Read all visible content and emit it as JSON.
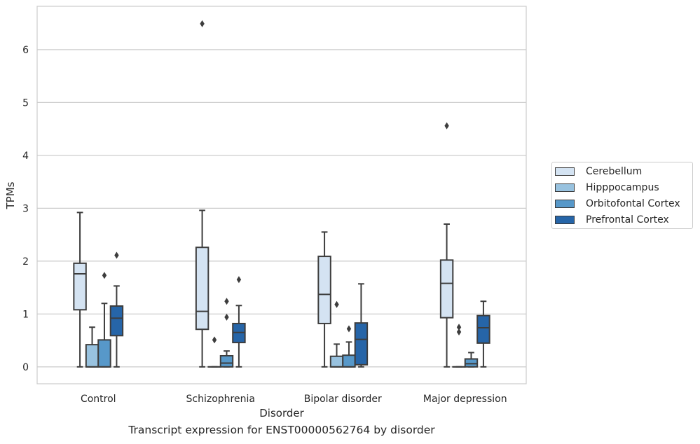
{
  "chart_data": {
    "type": "box",
    "xlabel": "Disorder",
    "ylabel": "TPMs",
    "caption": "Transcript expression for ENST00000562764 by disorder",
    "categories": [
      "Control",
      "Schizophrenia",
      "Bipolar disorder",
      "Major depression"
    ],
    "ylim": [
      -0.32,
      6.82
    ],
    "yticks": [
      0,
      1,
      2,
      3,
      4,
      5,
      6
    ],
    "ytick_labels": [
      "0",
      "1",
      "2",
      "3",
      "4",
      "5",
      "6"
    ],
    "grid": true,
    "legend_position": "right",
    "series": [
      {
        "name": "Cerebellum",
        "color": "#d4e3f2",
        "boxes": [
          {
            "whislo": 0.0,
            "q1": 1.08,
            "med": 1.76,
            "q3": 1.96,
            "whishi": 2.92,
            "fliers": []
          },
          {
            "whislo": 0.0,
            "q1": 0.71,
            "med": 1.05,
            "q3": 2.26,
            "whishi": 2.96,
            "fliers": [
              6.49
            ]
          },
          {
            "whislo": 0.0,
            "q1": 0.82,
            "med": 1.37,
            "q3": 2.09,
            "whishi": 2.55,
            "fliers": []
          },
          {
            "whislo": 0.0,
            "q1": 0.93,
            "med": 1.58,
            "q3": 2.02,
            "whishi": 2.7,
            "fliers": [
              4.56
            ]
          }
        ]
      },
      {
        "name": "Hipppocampus",
        "color": "#98c2df",
        "boxes": [
          {
            "whislo": 0.0,
            "q1": 0.0,
            "med": 0.0,
            "q3": 0.42,
            "whishi": 0.75,
            "fliers": []
          },
          {
            "whislo": 0.0,
            "q1": 0.0,
            "med": 0.0,
            "q3": 0.0,
            "whishi": 0.0,
            "fliers": [
              0.51
            ]
          },
          {
            "whislo": 0.0,
            "q1": 0.0,
            "med": 0.0,
            "q3": 0.2,
            "whishi": 0.43,
            "fliers": [
              1.18
            ]
          },
          {
            "whislo": 0.0,
            "q1": 0.0,
            "med": 0.0,
            "q3": 0.0,
            "whishi": 0.0,
            "fliers": [
              0.75,
              0.66
            ]
          }
        ]
      },
      {
        "name": "Orbitofontal Cortex",
        "color": "#5798c9",
        "boxes": [
          {
            "whislo": 0.0,
            "q1": 0.0,
            "med": 0.0,
            "q3": 0.51,
            "whishi": 1.2,
            "fliers": [
              1.73
            ]
          },
          {
            "whislo": 0.0,
            "q1": 0.0,
            "med": 0.07,
            "q3": 0.21,
            "whishi": 0.3,
            "fliers": [
              1.24,
              0.94
            ]
          },
          {
            "whislo": 0.0,
            "q1": 0.0,
            "med": 0.0,
            "q3": 0.22,
            "whishi": 0.47,
            "fliers": [
              0.72
            ]
          },
          {
            "whislo": 0.0,
            "q1": 0.0,
            "med": 0.06,
            "q3": 0.15,
            "whishi": 0.27,
            "fliers": []
          }
        ]
      },
      {
        "name": "Prefrontal Cortex",
        "color": "#2665a8",
        "boxes": [
          {
            "whislo": 0.0,
            "q1": 0.59,
            "med": 0.92,
            "q3": 1.15,
            "whishi": 1.53,
            "fliers": [
              2.11
            ]
          },
          {
            "whislo": 0.0,
            "q1": 0.46,
            "med": 0.65,
            "q3": 0.82,
            "whishi": 1.16,
            "fliers": [
              1.65
            ]
          },
          {
            "whislo": 0.0,
            "q1": 0.04,
            "med": 0.52,
            "q3": 0.83,
            "whishi": 1.57,
            "fliers": []
          },
          {
            "whislo": 0.0,
            "q1": 0.45,
            "med": 0.74,
            "q3": 0.97,
            "whishi": 1.24,
            "fliers": []
          }
        ]
      }
    ]
  }
}
